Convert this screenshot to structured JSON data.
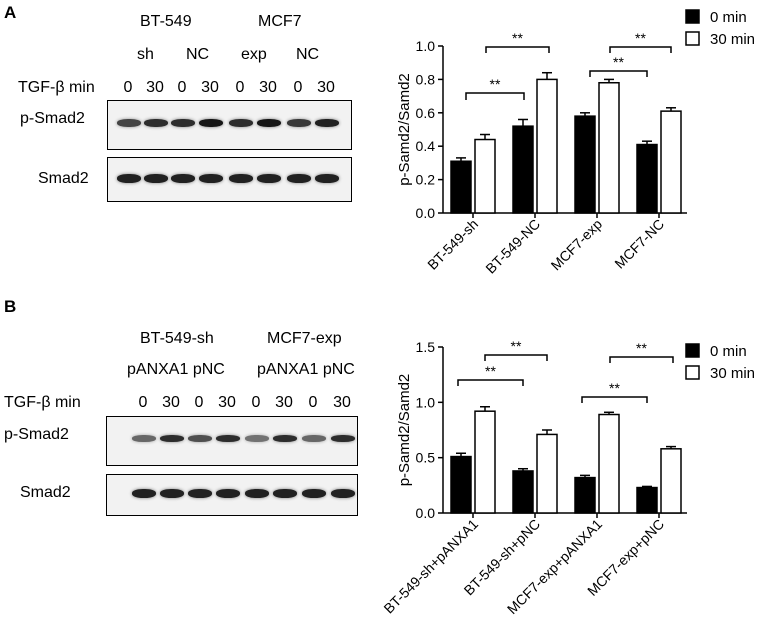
{
  "panelA": {
    "letter": "A",
    "blot": {
      "cell_lines": [
        "BT-549",
        "MCF7"
      ],
      "groups": [
        "sh",
        "NC",
        "exp",
        "NC"
      ],
      "treatment_label": "TGF-β min",
      "times": [
        "0",
        "30",
        "0",
        "30",
        "0",
        "30",
        "0",
        "30"
      ],
      "rows": [
        "p-Smad2",
        "Smad2"
      ]
    }
  },
  "panelB": {
    "letter": "B",
    "blot": {
      "cell_lines": [
        "BT-549-sh",
        "MCF7-exp"
      ],
      "groups_text": [
        "pANXA1 pNC",
        "pANXA1 pNC"
      ],
      "treatment_label": "TGF-β min",
      "times": [
        "0",
        "30",
        "0",
        "30",
        "0",
        "30",
        "0",
        "30"
      ],
      "rows": [
        "p-Smad2",
        "Smad2"
      ]
    }
  },
  "chart_data": [
    {
      "type": "bar",
      "panel": "A",
      "categories": [
        "BT-549-sh",
        "BT-549-NC",
        "MCF7-exp",
        "MCF7-NC"
      ],
      "series": [
        {
          "name": "0 min",
          "values": [
            0.31,
            0.52,
            0.58,
            0.41
          ],
          "errors": [
            0.02,
            0.04,
            0.02,
            0.02
          ],
          "color": "#000000"
        },
        {
          "name": "30 min",
          "values": [
            0.44,
            0.8,
            0.78,
            0.61
          ],
          "errors": [
            0.03,
            0.04,
            0.02,
            0.02
          ],
          "color": "#ffffff"
        }
      ],
      "ylabel": "p-Samd2/Samd2",
      "ylim": [
        0,
        1.0
      ],
      "yticks": [
        "0.0",
        "0.2",
        "0.4",
        "0.6",
        "0.8",
        "1.0"
      ],
      "significance": [
        {
          "from": "BT-549-sh",
          "to": "BT-549-NC",
          "label": "**"
        },
        {
          "from": "BT-549-sh",
          "to": "BT-549-NC",
          "label": "**"
        },
        {
          "from": "MCF7-exp",
          "to": "MCF7-NC",
          "label": "**"
        },
        {
          "from": "MCF7-exp",
          "to": "MCF7-NC",
          "label": "**"
        }
      ],
      "legend": "top-right"
    },
    {
      "type": "bar",
      "panel": "B",
      "categories": [
        "BT-549-sh+pANXA1",
        "BT-549-sh+pNC",
        "MCF7-exp+pANXA1",
        "MCF7-exp+pNC"
      ],
      "series": [
        {
          "name": "0 min",
          "values": [
            0.51,
            0.38,
            0.32,
            0.23
          ],
          "errors": [
            0.03,
            0.02,
            0.02,
            0.01
          ],
          "color": "#000000"
        },
        {
          "name": "30 min",
          "values": [
            0.92,
            0.71,
            0.89,
            0.58
          ],
          "errors": [
            0.04,
            0.04,
            0.02,
            0.02
          ],
          "color": "#ffffff"
        }
      ],
      "ylabel": "p-Samd2/Samd2",
      "ylim": [
        0,
        1.5
      ],
      "yticks": [
        "0.0",
        "0.5",
        "1.0",
        "1.5"
      ],
      "significance": [
        {
          "from": "BT-549-sh+pANXA1",
          "to": "BT-549-sh+pNC",
          "label": "**"
        },
        {
          "from": "BT-549-sh+pANXA1",
          "to": "BT-549-sh+pNC",
          "label": "**"
        },
        {
          "from": "MCF7-exp+pANXA1",
          "to": "MCF7-exp+pNC",
          "label": "**"
        },
        {
          "from": "MCF7-exp+pANXA1",
          "to": "MCF7-exp+pNC",
          "label": "**"
        }
      ],
      "legend": "top-right"
    }
  ]
}
